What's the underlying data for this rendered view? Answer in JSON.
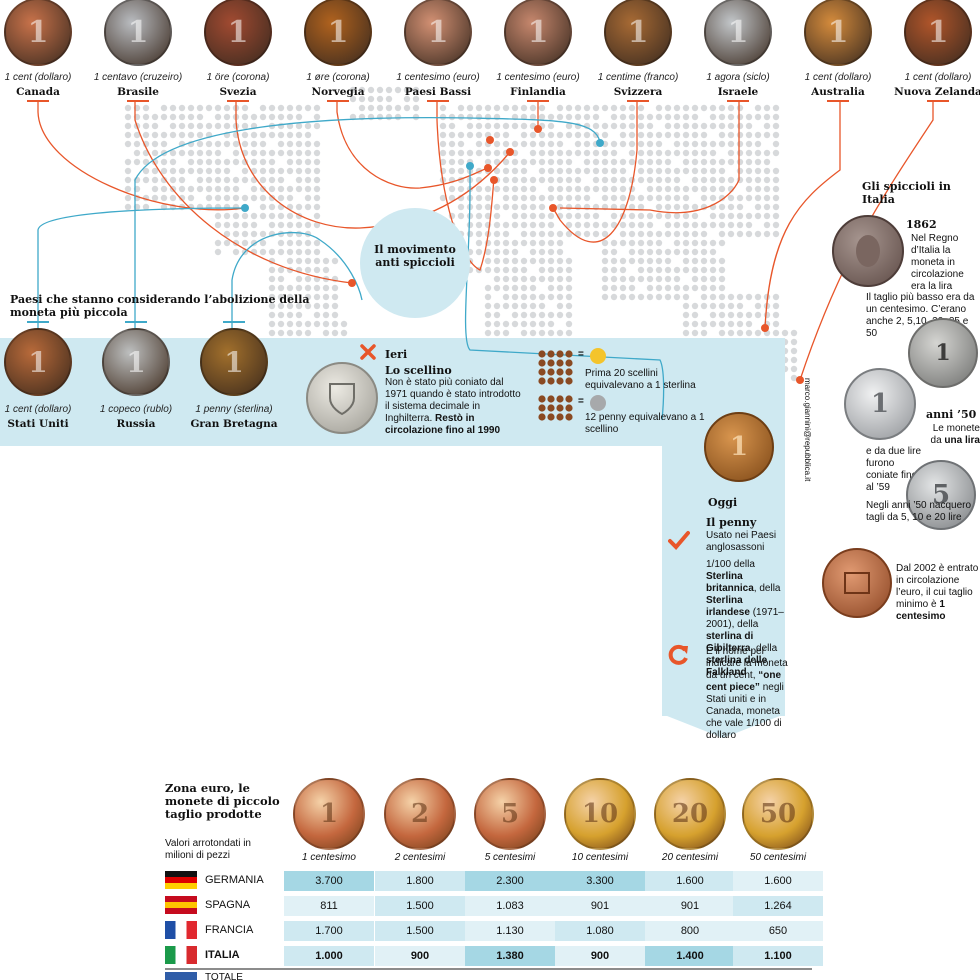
{
  "top_coins": [
    {
      "denom": "1 cent (dollaro)",
      "country": "Canada",
      "color": "#c8724a",
      "mark": "1"
    },
    {
      "denom": "1 centavo (cruzeiro)",
      "country": "Brasile",
      "color": "#b9bcc0",
      "mark": "1"
    },
    {
      "denom": "1 öre (corona)",
      "country": "Svezia",
      "color": "#a14a31",
      "mark": "1"
    },
    {
      "denom": "1 øre (corona)",
      "country": "Norvegia",
      "color": "#b0621e",
      "mark": "1"
    },
    {
      "denom": "1 centesimo (euro)",
      "country": "Paesi Bassi",
      "color": "#d29073",
      "mark": "1"
    },
    {
      "denom": "1 centesimo (euro)",
      "country": "Finlandia",
      "color": "#c6876d",
      "mark": "1"
    },
    {
      "denom": "1 centime (franco)",
      "country": "Svizzera",
      "color": "#a76a34",
      "mark": "1"
    },
    {
      "denom": "1 agora (siclo)",
      "country": "Israele",
      "color": "#c2c6c9",
      "mark": "1"
    },
    {
      "denom": "1 cent (dollaro)",
      "country": "Australia",
      "color": "#d48b3c",
      "mark": "1"
    },
    {
      "denom": "1 cent (dollaro)",
      "country": "Nuova Zelanda",
      "color": "#b0552a",
      "mark": "1"
    }
  ],
  "movement_label": "Il movimento anti spiccioli",
  "considering": {
    "heading": "Paesi che stanno considerando l’abolizione della moneta più piccola",
    "coins": [
      {
        "denom": "1 cent (dollaro)",
        "country": "Stati Uniti",
        "color": "#b86a3a",
        "mark": "1"
      },
      {
        "denom": "1 copeco (rublo)",
        "country": "Russia",
        "color": "#bdbfbf",
        "mark": "1"
      },
      {
        "denom": "1 penny (sterlina)",
        "country": "Gran Bretagna",
        "color": "#a2702c",
        "mark": "1"
      }
    ]
  },
  "ieri": {
    "title": "Ieri",
    "subtitle": "Lo scellino",
    "text_a": "Non è stato più coniato dal 1971 quando è stato introdotto il sistema decimale in Inghilterra.",
    "text_b": "Restò in circolazione fino al 1990",
    "legend": [
      {
        "sign": "=",
        "text": "Prima 20 scellini equivalevano a 1 sterlina",
        "color": "#f4c42b"
      },
      {
        "sign": "=",
        "text": "12 penny equivalevano a 1 scellino",
        "color": "#a7a9ab"
      }
    ]
  },
  "credit": "marco.giannini@repubblica.it",
  "oggi": {
    "title": "Oggi",
    "subtitle": "Il penny",
    "text1": "Usato nei Paesi anglosassoni",
    "p2_a": "1/100 della",
    "p2_b": "Sterlina britannica",
    "p2_c": ", della",
    "p2_d": "Sterlina irlandese",
    "p2_e": "(1971–2001), della",
    "p2_f": "sterlina di Gibilterra",
    "p2_g": ", della",
    "p2_h": "sterlina delle Falkland",
    "p3_a": "È il nome per indicare la moneta da un cent,",
    "p3_b": "“one cent piece”",
    "p3_c": "negli Stati uniti e in Canada, moneta che vale 1/100 di dollaro"
  },
  "italia": {
    "heading": "Gli spiccioli in Italia",
    "y1862": "1862",
    "t1862": "Nel Regno d’Italia la moneta in circolazione era la lira",
    "t_taglio": "Il taglio più basso era da un centesimo. C’erano anche 2, 5,10, 20, 25 e 50",
    "y50": "anni ’50",
    "t50_a": "Le monete",
    "t50_b": "da",
    "t50_c": "una lira",
    "t50_d": "e da due lire furono coniate fino al ’59",
    "t_negli": "Negli anni ’50 nacquero tagli da 5, 10 e 20 lire",
    "t2002_a": "Dal 2002 è entrato in circolazione l’euro, il cui taglio minimo è",
    "t2002_b": "1 centesimo"
  },
  "euro_table": {
    "title": "Zona euro, le monete di piccolo taglio prodotte",
    "subtitle": "Valori arrotondati in milioni di pezzi",
    "coins": [
      {
        "label": "1 centesimo",
        "mark": "1",
        "color": "#c4673e"
      },
      {
        "label": "2 centesimi",
        "mark": "2",
        "color": "#c4673e"
      },
      {
        "label": "5 centesimi",
        "mark": "5",
        "color": "#c4673e"
      },
      {
        "label": "10 centesimi",
        "mark": "10",
        "color": "#d6a12e"
      },
      {
        "label": "20 centesimi",
        "mark": "20",
        "color": "#d6a12e"
      },
      {
        "label": "50 centesimi",
        "mark": "50",
        "color": "#d6a12e"
      }
    ],
    "rows": [
      {
        "country": "GERMANIA",
        "values": [
          "3.700",
          "1.800",
          "2.300",
          "3.300",
          "1.600",
          "1.600"
        ]
      },
      {
        "country": "SPAGNA",
        "values": [
          "811",
          "1.500",
          "1.083",
          "901",
          "901",
          "1.264"
        ]
      },
      {
        "country": "FRANCIA",
        "values": [
          "1.700",
          "1.500",
          "1.130",
          "1.080",
          "800",
          "650"
        ]
      },
      {
        "country": "ITALIA",
        "values": [
          "1.000",
          "900",
          "1.380",
          "900",
          "1.400",
          "1.100"
        ]
      }
    ],
    "total_label": "TOTALE"
  },
  "colors": {
    "accent": "#e8562a",
    "blue_line": "#3fa9c9",
    "band": "#cfe9f1",
    "map_dot": "#d7d9db"
  }
}
